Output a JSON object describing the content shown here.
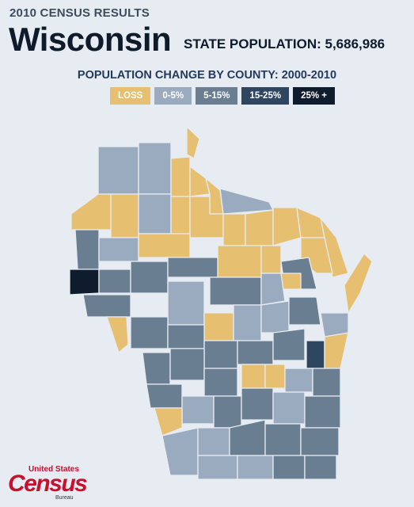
{
  "header": {
    "kicker": "2010 CENSUS RESULTS",
    "state": "Wisconsin",
    "population": "STATE POPULATION: 5,686,986",
    "subtitle": "POPULATION CHANGE BY COUNTY: 2000-2010"
  },
  "legend": {
    "items": [
      {
        "label": "LOSS",
        "color": "#e6bf70"
      },
      {
        "label": "0-5%",
        "color": "#9aabc0"
      },
      {
        "label": "5-15%",
        "color": "#6a7e92"
      },
      {
        "label": "15-25%",
        "color": "#2f4660"
      },
      {
        "label": "25% +",
        "color": "#0f1c2e"
      }
    ]
  },
  "colors": {
    "loss": "#e6bf70",
    "c0_5": "#9aabc0",
    "c5_15": "#6a7e92",
    "c15_25": "#2f4660",
    "c25plus": "#0f1c2e",
    "background": "#e6ecf2"
  },
  "logo": {
    "top": "United States",
    "main": "Census",
    "bottom": "Bureau"
  }
}
